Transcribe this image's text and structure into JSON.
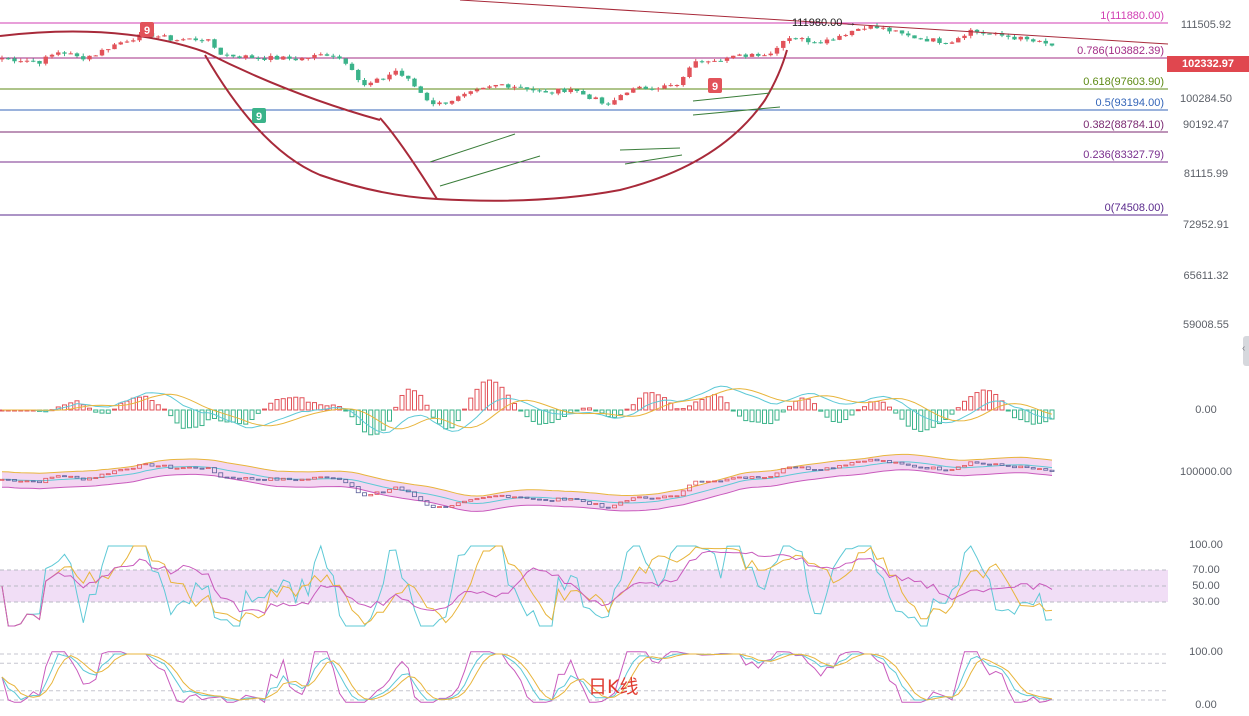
{
  "chart_data": {
    "type": "candlestick",
    "period_label": "日K线",
    "current_price": "102332.97",
    "high_marker": "111980.00",
    "y_axis_ticks": [
      "111505.92",
      "100284.50",
      "90192.47",
      "81115.99",
      "72952.91",
      "65611.32",
      "59008.55"
    ],
    "fib_levels": [
      {
        "label": "1(111880.00)",
        "value": 111880.0,
        "color": "#d13fb3"
      },
      {
        "label": "0.786(103882.39)",
        "value": 103882.39,
        "color": "#a32d86"
      },
      {
        "label": "0.618(97603.90)",
        "value": 97603.9,
        "color": "#5d8a15"
      },
      {
        "label": "0.5(93194.00)",
        "value": 93194.0,
        "color": "#3465b8"
      },
      {
        "label": "0.382(88784.10)",
        "value": 88784.1,
        "color": "#7b2a72"
      },
      {
        "label": "0.236(83327.79)",
        "value": 83327.79,
        "color": "#7a2f8e"
      },
      {
        "label": "0(74508.00)",
        "value": 74508.0,
        "color": "#5a2a8c"
      }
    ],
    "td_markers": [
      "9",
      "9",
      "9"
    ],
    "macd": {
      "zero_label": "0.00"
    },
    "boll": {
      "level_label": "100000.00"
    },
    "rsi": {
      "ticks": [
        "100.00",
        "70.00",
        "50.00",
        "30.00"
      ]
    },
    "kdj": {
      "ticks": [
        "100.00",
        "0.00"
      ]
    },
    "colors": {
      "up": "#e2535a",
      "down": "#3bb38a",
      "ma_yellow": "#e8b53c",
      "ma_cyan": "#5ec9d6",
      "ma_pink": "#c95bbd",
      "trend": "#a82a3a"
    }
  }
}
